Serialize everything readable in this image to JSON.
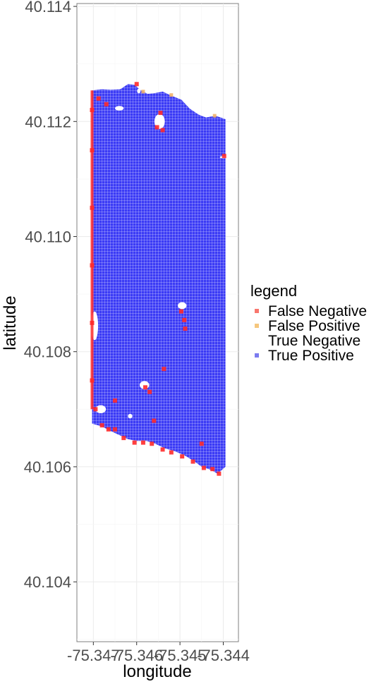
{
  "chart_data": {
    "type": "scatter",
    "xlabel": "longitude",
    "ylabel": "latitude",
    "x_ticks": [
      -75.347,
      -75.346,
      -75.345,
      -75.344
    ],
    "x_tick_labels": [
      "-75.347",
      "-75.346",
      "-75.345",
      "-75.344"
    ],
    "y_ticks": [
      40.104,
      40.106,
      40.108,
      40.11,
      40.112,
      40.114
    ],
    "y_tick_labels": [
      "40.104",
      "40.106",
      "40.108",
      "40.110",
      "40.112",
      "40.114"
    ],
    "xlim": [
      -75.34738,
      -75.34365
    ],
    "ylim": [
      40.10296,
      40.11405
    ],
    "grid": true,
    "legend": {
      "title": "legend",
      "placement": "right",
      "entries": [
        {
          "label": "False Negative",
          "color": "#f8766d"
        },
        {
          "label": "False Positive",
          "color": "#f5c77e"
        },
        {
          "label": "True Negative",
          "color": ""
        },
        {
          "label": "True Positive",
          "color": "#7b7bf0"
        }
      ]
    },
    "colors": {
      "true_positive": "#3b3bf5",
      "false_negative": "#ff2a2a",
      "false_positive": "#f2b46a"
    },
    "series": [
      {
        "name": "True Positive",
        "region": {
          "top_edge": [
            [
              -75.34703,
              40.11254
            ],
            [
              -75.3468,
              40.11256
            ],
            [
              -75.3466,
              40.11255
            ],
            [
              -75.34638,
              40.11256
            ],
            [
              -75.3462,
              40.11265
            ],
            [
              -75.34605,
              40.11264
            ],
            [
              -75.34592,
              40.11255
            ],
            [
              -75.34575,
              40.11248
            ],
            [
              -75.3456,
              40.11249
            ],
            [
              -75.3454,
              40.11252
            ],
            [
              -75.3452,
              40.11245
            ],
            [
              -75.34497,
              40.11238
            ],
            [
              -75.34477,
              40.11222
            ],
            [
              -75.34457,
              40.11212
            ],
            [
              -75.3444,
              40.11207
            ],
            [
              -75.34418,
              40.1121
            ],
            [
              -75.34395,
              40.11204
            ]
          ],
          "bottom_edge": [
            [
              -75.34703,
              40.10675
            ],
            [
              -75.3468,
              40.1067
            ],
            [
              -75.3466,
              40.10662
            ],
            [
              -75.3464,
              40.10655
            ],
            [
              -75.3462,
              40.10648
            ],
            [
              -75.346,
              40.10645
            ],
            [
              -75.34577,
              40.10645
            ],
            [
              -75.34557,
              40.1064
            ],
            [
              -75.34535,
              40.10632
            ],
            [
              -75.34512,
              40.10627
            ],
            [
              -75.3449,
              40.1062
            ],
            [
              -75.34468,
              40.1061
            ],
            [
              -75.3445,
              40.106
            ],
            [
              -75.3443,
              40.10595
            ],
            [
              -75.34413,
              40.10588
            ],
            [
              -75.34395,
              40.106
            ]
          ],
          "holes": [
            [
              -75.34547,
              40.112,
              0.00012,
              0.00013
            ],
            [
              -75.3464,
              40.11223,
              0.0001,
              4e-05
            ],
            [
              -75.34495,
              40.1088,
              0.0001,
              6e-05
            ],
            [
              -75.34582,
              40.10742,
              0.00011,
              7e-05
            ],
            [
              -75.34697,
              40.10845,
              8e-05,
              0.00025
            ],
            [
              -75.34683,
              40.107,
              0.00012,
              7e-05
            ],
            [
              -75.34615,
              40.10688,
              5e-05,
              4e-05
            ],
            [
              -75.344,
              40.11138,
              8e-05,
              2e-05
            ],
            [
              -75.34595,
              40.11253,
              4e-05,
              4e-05
            ]
          ]
        }
      },
      {
        "name": "False Negative",
        "points": [
          [
            -75.34703,
            40.1122
          ],
          [
            -75.34703,
            40.1115
          ],
          [
            -75.34703,
            40.1105
          ],
          [
            -75.34703,
            40.1095
          ],
          [
            -75.34703,
            40.1085
          ],
          [
            -75.34703,
            40.1075
          ],
          [
            -75.34695,
            40.107
          ],
          [
            -75.3468,
            40.10672
          ],
          [
            -75.34665,
            40.10665
          ],
          [
            -75.3465,
            40.10665
          ],
          [
            -75.3463,
            40.1065
          ],
          [
            -75.34605,
            40.10642
          ],
          [
            -75.34585,
            40.10642
          ],
          [
            -75.34565,
            40.1064
          ],
          [
            -75.3454,
            40.1063
          ],
          [
            -75.3452,
            40.10625
          ],
          [
            -75.34495,
            40.10618
          ],
          [
            -75.3447,
            40.10609
          ],
          [
            -75.34445,
            40.10598
          ],
          [
            -75.34425,
            40.10596
          ],
          [
            -75.3441,
            40.10588
          ],
          [
            -75.34545,
            40.11215
          ],
          [
            -75.3454,
            40.11185
          ],
          [
            -75.34553,
            40.1119
          ],
          [
            -75.34688,
            40.1124
          ],
          [
            -75.3467,
            40.1123
          ],
          [
            -75.346,
            40.11265
          ],
          [
            -75.3458,
            40.10738
          ],
          [
            -75.3457,
            40.1073
          ],
          [
            -75.34537,
            40.1077
          ],
          [
            -75.34497,
            40.1087
          ],
          [
            -75.3449,
            40.10855
          ],
          [
            -75.34488,
            40.1084
          ],
          [
            -75.3456,
            40.1068
          ],
          [
            -75.3465,
            40.10715
          ],
          [
            -75.3445,
            40.1064
          ],
          [
            -75.34398,
            40.1114
          ]
        ]
      },
      {
        "name": "False Positive",
        "points": [
          [
            -75.3452,
            40.11246
          ],
          [
            -75.3442,
            40.1121
          ],
          [
            -75.34585,
            40.11252
          ]
        ]
      }
    ]
  }
}
